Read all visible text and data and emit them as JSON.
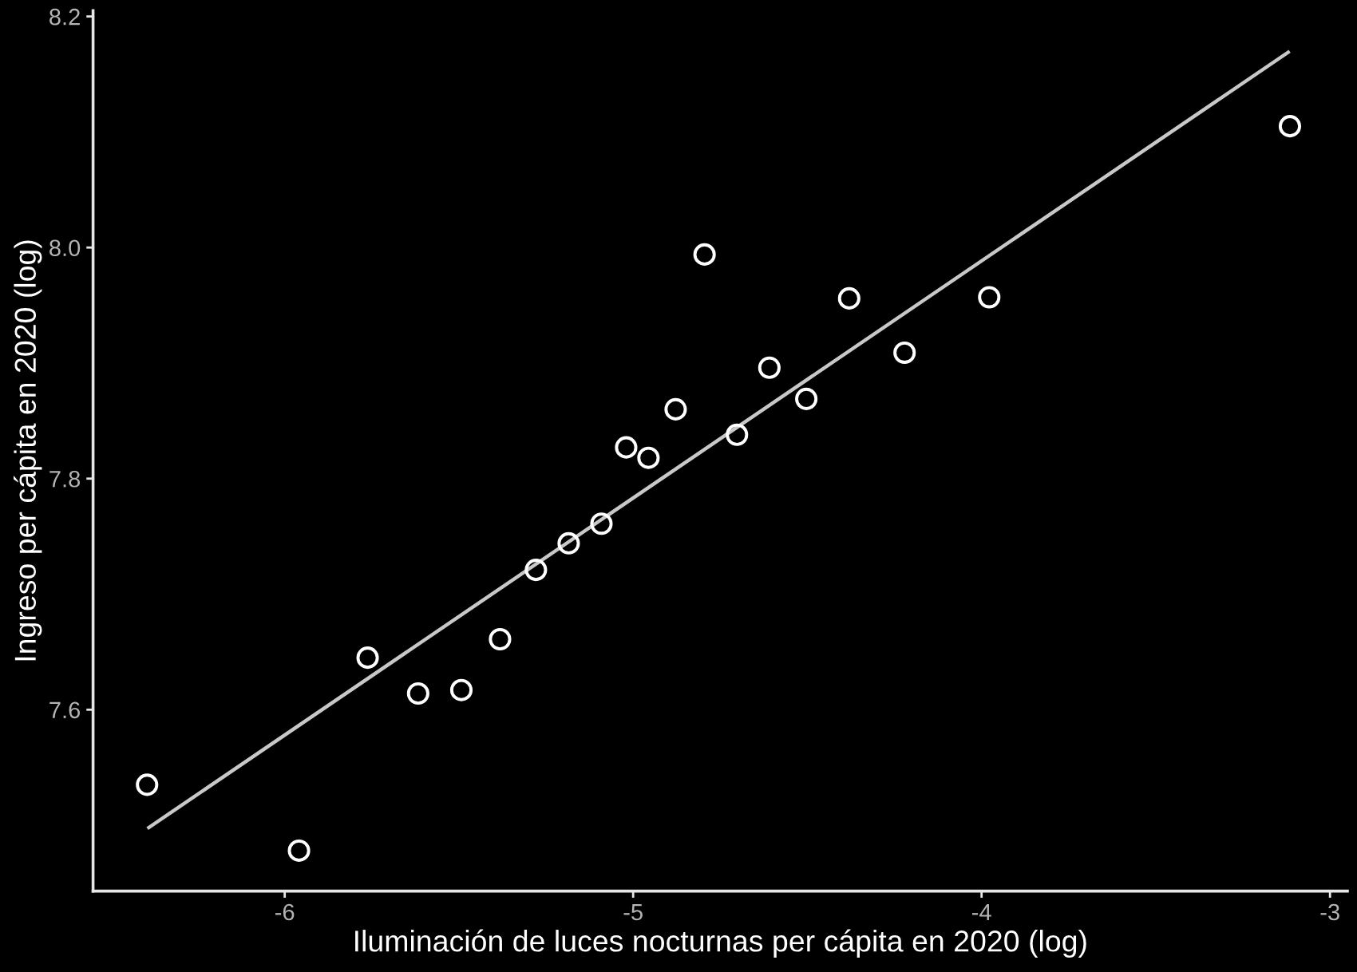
{
  "chart_data": {
    "type": "scatter",
    "xlabel": "Iluminación de luces nocturnas per cápita en 2020 (log)",
    "ylabel": "Ingreso per cápita en 2020 (log)",
    "xlim": [
      -6.55,
      -2.95
    ],
    "ylim": [
      7.443,
      8.205
    ],
    "xticks": [
      -6,
      -5,
      -4,
      -3
    ],
    "yticks": [
      7.6,
      7.8,
      {
        "value": 8,
        "label": "8.0"
      },
      8.2
    ],
    "series": [
      {
        "color": "#ffffff",
        "marker": "circle",
        "x": [
          -6.395,
          -5.959,
          -5.762,
          -5.617,
          -5.493,
          -5.382,
          -5.279,
          -5.185,
          -5.091,
          -5.02,
          -4.956,
          -4.878,
          -4.795,
          -4.702,
          -4.609,
          -4.503,
          -4.38,
          -4.221,
          -3.978,
          -3.115
        ],
        "values": [
          7.535,
          7.478,
          7.645,
          7.614,
          7.617,
          7.661,
          7.721,
          7.744,
          7.761,
          7.827,
          7.818,
          7.86,
          7.994,
          7.838,
          7.896,
          7.869,
          7.956,
          7.909,
          7.957,
          8.105
        ]
      },
      {
        "type": "line",
        "color": "#c8c8c8",
        "x": [
          -6.39,
          -3.12
        ],
        "values": [
          7.498,
          8.169
        ]
      }
    ]
  }
}
